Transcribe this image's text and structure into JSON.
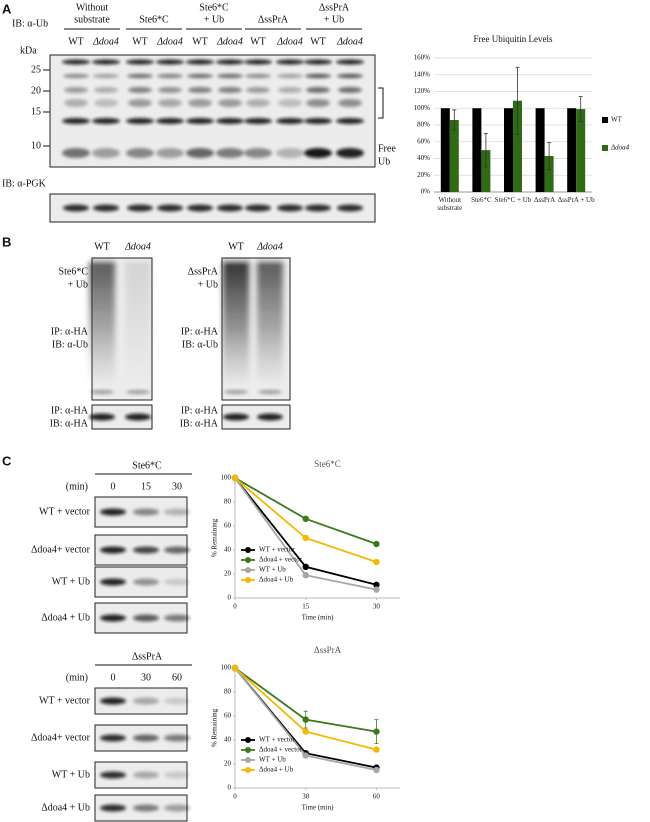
{
  "panel_a": {
    "letter": "A",
    "blot_label": "IB: α-Ub",
    "groups": [
      [
        "Without",
        "substrate"
      ],
      [
        "Ste6*C"
      ],
      [
        "Ste6*C",
        "+ Ub"
      ],
      [
        "ΔssPrA"
      ],
      [
        "ΔssPrA",
        "+ Ub"
      ]
    ],
    "lanes": [
      "WT",
      "Δdoa4",
      "WT",
      "Δdoa4",
      "WT",
      "Δdoa4",
      "WT",
      "Δdoa4",
      "WT",
      "Δdoa4"
    ],
    "kda": "kDa",
    "markers": [
      25,
      20,
      15,
      10
    ],
    "free_ub": [
      "Free",
      "Ub"
    ],
    "pgk_label": "IB: α-PGK"
  },
  "panel_b": {
    "letter": "B",
    "blots": [
      {
        "lanes": [
          "WT",
          "Δdoa4"
        ],
        "sample": [
          "Ste6*C",
          "+ Ub"
        ],
        "top_label": [
          "IP: α-HA",
          "IB: α-Ub"
        ],
        "bottom_label": [
          "IP: α-HA",
          "IB: α-HA"
        ]
      },
      {
        "lanes": [
          "WT",
          "Δdoa4"
        ],
        "sample": [
          "ΔssPrA",
          "+ Ub"
        ],
        "top_label": [
          "IP: α-HA",
          "IB: α-Ub"
        ],
        "bottom_label": [
          "IP: α-HA",
          "IB: α-HA"
        ]
      }
    ]
  },
  "panel_c": {
    "letter": "C",
    "blots": [
      {
        "substrate": "Ste6*C",
        "time_label": "(min)",
        "times": [
          0,
          15,
          30
        ],
        "rows": [
          "WT + vector",
          "Δdoa4+ vector",
          "WT + Ub",
          "Δdoa4 + Ub"
        ]
      },
      {
        "substrate": "ΔssPrA",
        "time_label": "(min)",
        "times": [
          0,
          30,
          60
        ],
        "rows": [
          "WT + vector",
          "Δdoa4+ vector",
          "WT + Ub",
          "Δdoa4 + Ub"
        ]
      }
    ]
  },
  "chart_data": [
    {
      "type": "bar",
      "title": "Free Ubiquitin Levels",
      "categories": [
        "Without substrate",
        "Ste6*C",
        "Ste6*C + Ub",
        "ΔssPrA",
        "ΔssPrA + Ub"
      ],
      "series": [
        {
          "name": "WT",
          "color": "#000000",
          "values": [
            100,
            100,
            100,
            100,
            100
          ]
        },
        {
          "name": "Δdoa4",
          "color": "#2e6b12",
          "values": [
            86,
            50,
            109,
            43,
            99
          ],
          "errors": [
            12,
            20,
            40,
            16,
            15
          ]
        }
      ],
      "ylim": [
        0,
        160
      ],
      "yticks": [
        {
          "value": 0,
          "label": "0%"
        },
        {
          "value": 20,
          "label": "20%"
        },
        {
          "value": 40,
          "label": "40%"
        },
        {
          "value": 60,
          "label": "60%"
        },
        {
          "value": 80,
          "label": "80%"
        },
        {
          "value": 100,
          "label": "100%"
        },
        {
          "value": 120,
          "label": "120%"
        },
        {
          "value": 140,
          "label": "140%"
        },
        {
          "value": 160,
          "label": "160%"
        }
      ],
      "grid": true,
      "legend": "right"
    },
    {
      "type": "line",
      "title": "Ste6*C",
      "x": [
        0,
        15,
        30
      ],
      "xlim": [
        0,
        35
      ],
      "xticks": [
        0,
        15,
        30
      ],
      "ylim": [
        0,
        100
      ],
      "yticks": [
        0,
        20,
        40,
        60,
        80,
        100
      ],
      "xlabel": "Time (min)",
      "ylabel": "% Remaining",
      "legend": "lower left",
      "series": [
        {
          "name": "WT + vector",
          "color": "#000000",
          "values": [
            100,
            26,
            11
          ]
        },
        {
          "name": "Δdoa4 + vector",
          "color": "#3d7a1e",
          "values": [
            100,
            66,
            45
          ]
        },
        {
          "name": "WT + Ub",
          "color": "#a6a6a6",
          "values": [
            100,
            19,
            7
          ]
        },
        {
          "name": "Δdoa4 + Ub",
          "color": "#f5b800",
          "values": [
            100,
            50,
            30
          ]
        }
      ]
    },
    {
      "type": "line",
      "title": "ΔssPrA",
      "x": [
        0,
        30,
        60
      ],
      "xlim": [
        0,
        70
      ],
      "xticks": [
        0,
        30,
        60
      ],
      "ylim": [
        0,
        100
      ],
      "yticks": [
        0,
        20,
        40,
        60,
        80,
        100
      ],
      "xlabel": "Time (min)",
      "ylabel": "% Remaining",
      "legend": "lower left",
      "series": [
        {
          "name": "WT + vector",
          "color": "#000000",
          "values": [
            100,
            29,
            17
          ]
        },
        {
          "name": "Δdoa4 + vector",
          "color": "#3d7a1e",
          "values": [
            100,
            57,
            47
          ],
          "errors": [
            null,
            7,
            10
          ]
        },
        {
          "name": "WT + Ub",
          "color": "#a6a6a6",
          "values": [
            100,
            27,
            15
          ]
        },
        {
          "name": "Δdoa4 + Ub",
          "color": "#f5b800",
          "values": [
            100,
            47,
            32
          ]
        }
      ]
    }
  ]
}
